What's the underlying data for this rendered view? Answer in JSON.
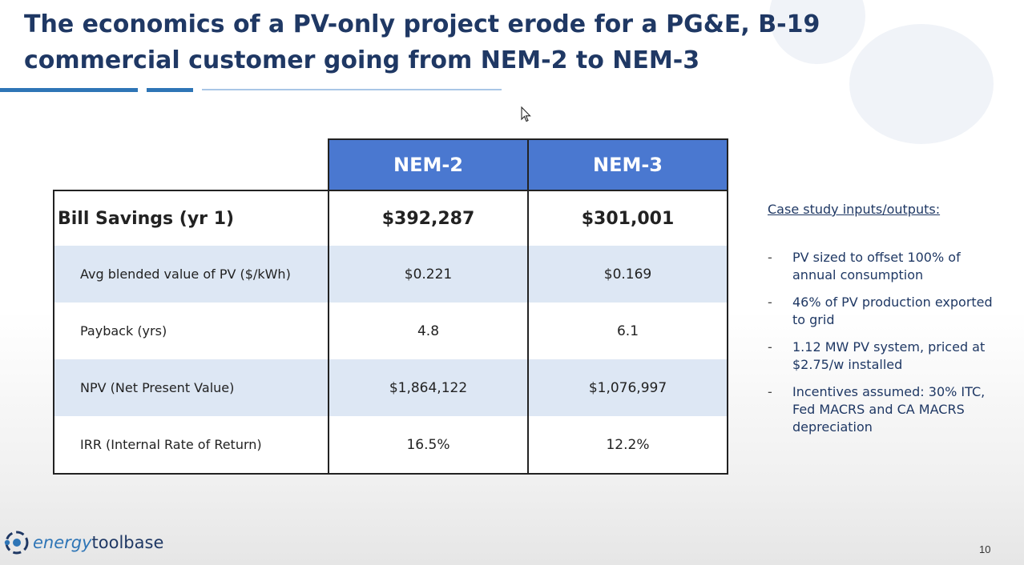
{
  "slide": {
    "title": "The economics of a PV-only project erode for a PG&E, B-19 commercial customer going from NEM-2 to NEM-3",
    "page_number": "10"
  },
  "table": {
    "columns": [
      "NEM-2",
      "NEM-3"
    ],
    "rows": [
      {
        "label": "Bill Savings (yr 1)",
        "values": [
          "$392,287",
          "$301,001"
        ]
      },
      {
        "label": "Avg blended value of PV ($/kWh)",
        "values": [
          "$0.221",
          "$0.169"
        ]
      },
      {
        "label": "Payback (yrs)",
        "values": [
          "4.8",
          "6.1"
        ]
      },
      {
        "label": "NPV (Net Present Value)",
        "values": [
          "$1,864,122",
          "$1,076,997"
        ]
      },
      {
        "label": "IRR (Internal Rate of Return)",
        "values": [
          "16.5%",
          "12.2%"
        ]
      }
    ]
  },
  "case_study": {
    "title": "Case study inputs/outputs:",
    "bullets": [
      "PV sized to offset 100% of annual consumption",
      "46% of PV production exported to grid",
      "1.12 MW PV system, priced at $2.75/w installed",
      "Incentives assumed: 30% ITC, Fed MACRS and CA MACRS depreciation"
    ],
    "bullet_marker": "-"
  },
  "logo": {
    "text_a": "energy",
    "text_b": "toolbase"
  },
  "colors": {
    "title": "#1f3864",
    "header_fill": "#4a78d0",
    "row_shade": "#dde7f4",
    "accent_bar": "#2e75b6"
  },
  "icons": {
    "cursor": "mouse-pointer-icon",
    "logo": "energy-toolbase-logo-icon"
  }
}
